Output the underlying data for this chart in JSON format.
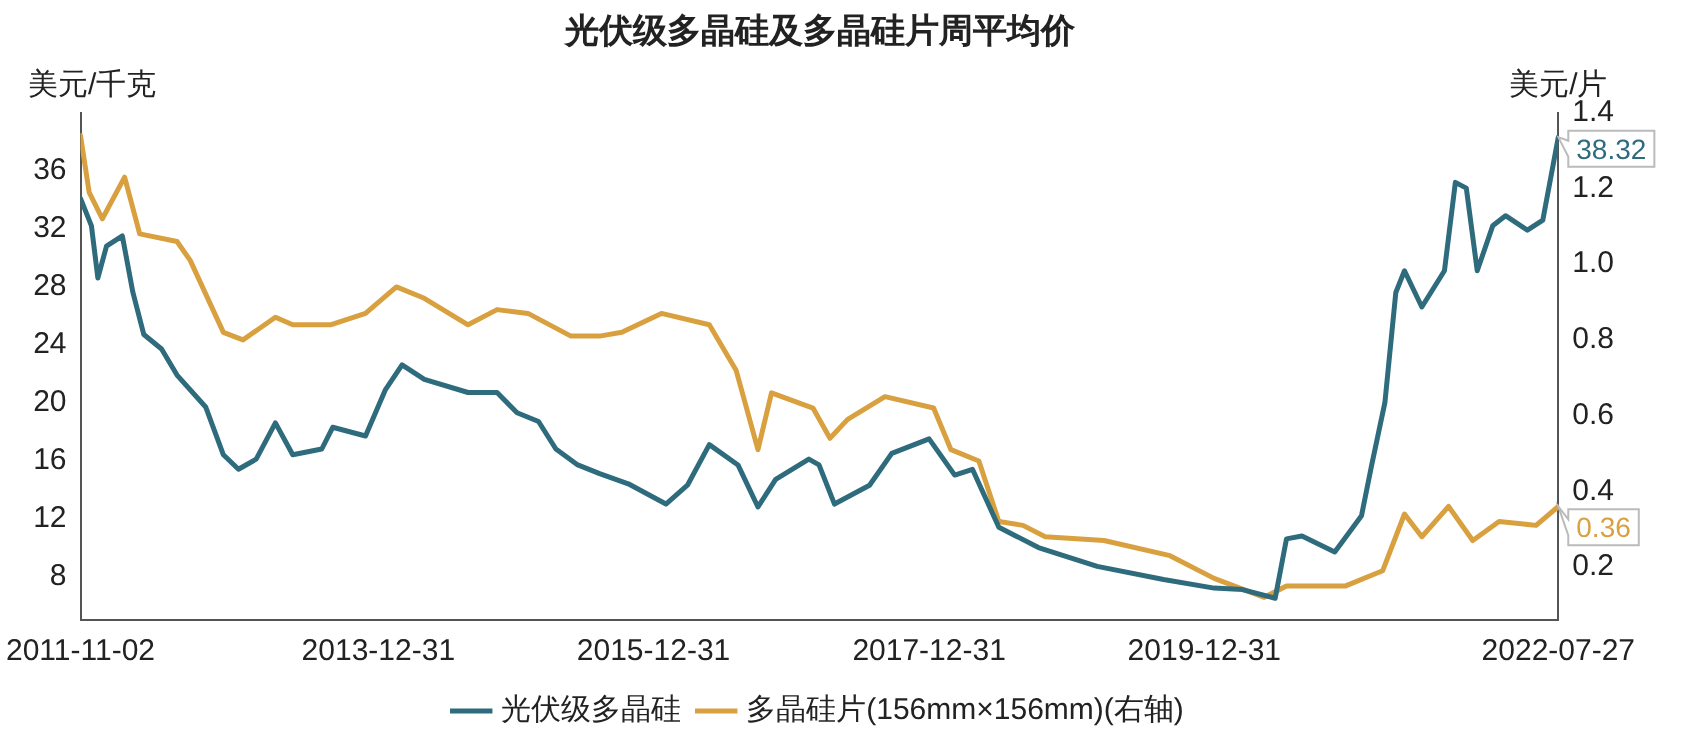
{
  "chart_data": {
    "type": "line",
    "title": "光伏级多晶硅及多晶硅片周平均价",
    "ylabel": "美元/千克",
    "y2label": "美元/片",
    "legend": "bottom",
    "grid": false,
    "marker": "none",
    "line_style": "solid",
    "xlim": [
      "2011-11-02",
      "2022-07-27"
    ],
    "xticks": [
      "2011-11-02",
      "2013-12-31",
      "2015-12-31",
      "2017-12-31",
      "2019-12-31",
      "2022-07-27"
    ],
    "ylim": [
      5,
      40
    ],
    "yticks": [
      8,
      12,
      16,
      20,
      24,
      28,
      32,
      36
    ],
    "y2lim": [
      0.06,
      1.4
    ],
    "y2ticks": [
      0.2,
      0.4,
      0.6,
      0.8,
      {
        "value": 1.0,
        "label": "1.0"
      },
      1.2,
      1.4
    ],
    "series": [
      {
        "name": "光伏级多晶硅",
        "color": "#2e6b7c",
        "x": [
          "2011-11-02",
          "2011-12-01",
          "2011-12-18",
          "2012-01-10",
          "2012-02-21",
          "2012-03-20",
          "2012-04-18",
          "2012-06-04",
          "2012-07-15",
          "2012-09-29",
          "2012-11-15",
          "2012-12-25",
          "2013-02-10",
          "2013-04-02",
          "2013-05-18",
          "2013-08-03",
          "2013-09-01",
          "2013-11-27",
          "2014-01-19",
          "2014-03-04",
          "2014-05-02",
          "2014-08-26",
          "2014-11-11",
          "2015-01-03",
          "2015-03-01",
          "2015-04-16",
          "2015-06-13",
          "2015-08-10",
          "2015-10-25",
          "2016-02-02",
          "2016-03-30",
          "2016-05-27",
          "2016-08-11",
          "2016-10-03",
          "2016-11-19",
          "2017-02-15",
          "2017-03-14",
          "2017-04-24",
          "2017-07-26",
          "2017-09-23",
          "2017-12-31",
          "2018-03-09",
          "2018-04-25",
          "2018-07-04",
          "2018-10-17",
          "2019-03-22",
          "2019-09-14",
          "2020-01-26",
          "2020-04-10",
          "2020-07-06",
          "2020-08-05",
          "2020-09-15",
          "2020-12-11",
          "2021-02-20",
          "2021-03-19",
          "2021-04-23",
          "2021-05-22",
          "2021-06-14",
          "2021-07-30",
          "2021-09-28",
          "2021-10-27",
          "2021-11-25",
          "2021-12-24",
          "2022-02-03",
          "2022-03-09",
          "2022-05-06",
          "2022-06-16",
          "2022-07-27"
        ],
        "values": [
          34.1,
          32.2,
          28.6,
          30.8,
          31.5,
          27.6,
          24.7,
          23.7,
          21.9,
          19.7,
          16.4,
          15.4,
          16.1,
          18.6,
          16.4,
          16.8,
          18.3,
          17.7,
          20.9,
          22.6,
          21.6,
          20.7,
          20.7,
          19.3,
          18.7,
          16.8,
          15.7,
          15.1,
          14.4,
          13.0,
          14.3,
          17.1,
          15.7,
          12.8,
          14.7,
          16.1,
          15.7,
          13.0,
          14.3,
          16.5,
          17.5,
          15.0,
          15.4,
          11.4,
          10.0,
          8.7,
          7.8,
          7.2,
          7.1,
          6.5,
          10.6,
          10.8,
          9.7,
          12.2,
          15.7,
          20.0,
          27.6,
          29.1,
          26.6,
          29.1,
          35.2,
          34.8,
          29.1,
          32.2,
          32.9,
          31.9,
          32.6,
          38.32
        ],
        "value_labels": [
          null,
          null,
          null,
          null,
          null,
          null,
          null,
          null,
          null,
          null,
          null,
          null,
          null,
          null,
          null,
          null,
          null,
          null,
          null,
          null,
          null,
          null,
          null,
          null,
          null,
          null,
          null,
          null,
          null,
          null,
          null,
          null,
          null,
          null,
          null,
          null,
          null,
          null,
          null,
          null,
          null,
          null,
          null,
          null,
          null,
          null,
          null,
          null,
          null,
          null,
          null,
          null,
          null,
          null,
          null,
          null,
          null,
          null,
          null,
          null,
          null,
          null,
          null,
          null,
          null,
          null,
          null,
          "38.32"
        ]
      },
      {
        "name": "多晶硅片(156mm×156mm)(右轴)",
        "color": "#d9a040",
        "axis": "y2",
        "x": [
          "2011-11-02",
          "2011-11-25",
          "2011-12-30",
          "2012-02-27",
          "2012-04-07",
          "2012-07-15",
          "2012-08-19",
          "2012-11-15",
          "2013-01-06",
          "2013-04-02",
          "2013-05-18",
          "2013-08-26",
          "2013-11-27",
          "2014-02-17",
          "2014-05-02",
          "2014-08-26",
          "2014-11-11",
          "2015-02-01",
          "2015-05-26",
          "2015-08-10",
          "2015-10-08",
          "2016-01-21",
          "2016-05-27",
          "2016-08-06",
          "2016-10-03",
          "2016-11-08",
          "2017-02-26",
          "2017-04-12",
          "2017-05-29",
          "2017-09-05",
          "2018-01-12",
          "2018-02-27",
          "2018-05-12",
          "2018-07-04",
          "2018-09-06",
          "2018-11-04",
          "2019-04-09",
          "2019-10-01",
          "2020-01-26",
          "2020-06-07",
          "2020-08-05",
          "2021-01-09",
          "2021-04-17",
          "2021-06-14",
          "2021-07-30",
          "2021-10-09",
          "2021-12-12",
          "2022-02-20",
          "2022-05-29",
          "2022-07-27"
        ],
        "values": [
          1.34,
          1.19,
          1.12,
          1.23,
          1.08,
          1.06,
          1.01,
          0.82,
          0.8,
          0.86,
          0.84,
          0.84,
          0.87,
          0.94,
          0.91,
          0.84,
          0.88,
          0.87,
          0.81,
          0.81,
          0.82,
          0.87,
          0.84,
          0.72,
          0.51,
          0.66,
          0.62,
          0.54,
          0.59,
          0.65,
          0.62,
          0.51,
          0.48,
          0.32,
          0.31,
          0.28,
          0.27,
          0.23,
          0.17,
          0.12,
          0.15,
          0.15,
          0.19,
          0.34,
          0.28,
          0.36,
          0.27,
          0.32,
          0.31,
          0.36
        ],
        "value_labels": [
          null,
          null,
          null,
          null,
          null,
          null,
          null,
          null,
          null,
          null,
          null,
          null,
          null,
          null,
          null,
          null,
          null,
          null,
          null,
          null,
          null,
          null,
          null,
          null,
          null,
          null,
          null,
          null,
          null,
          null,
          null,
          null,
          null,
          null,
          null,
          null,
          null,
          null,
          null,
          null,
          null,
          null,
          null,
          null,
          null,
          null,
          null,
          null,
          null,
          "0.36"
        ]
      }
    ]
  }
}
